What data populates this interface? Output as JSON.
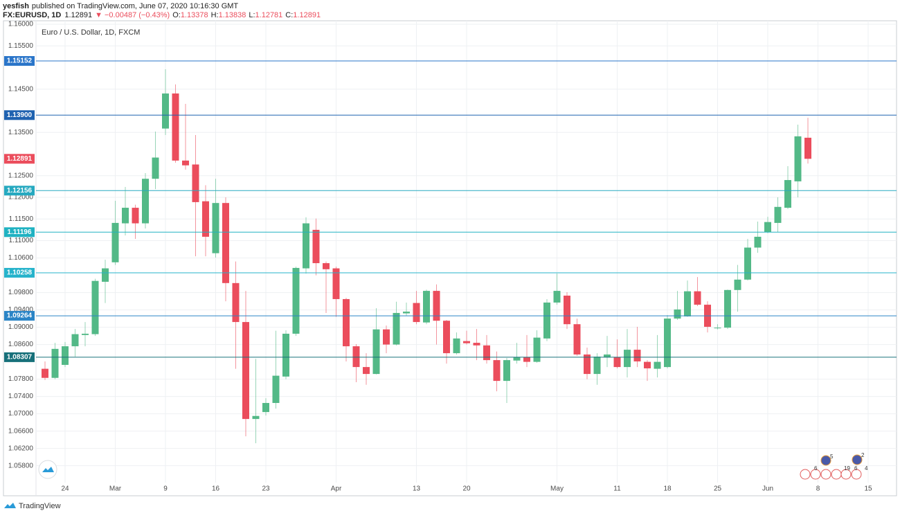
{
  "header": {
    "author": "yesfish",
    "published": "published on TradingView.com, June 07, 2020 10:16:30 GMT",
    "symbol": "FX:EURUSD, 1D",
    "last": "1.12891",
    "change": "−0.00487 (−0.43%)",
    "ohlc": [
      [
        "O:",
        "1.13378"
      ],
      [
        "H:",
        "1.13838"
      ],
      [
        "L:",
        "1.12781"
      ],
      [
        "C:",
        "1.12891"
      ]
    ]
  },
  "footer": {
    "brand": "TradingView"
  },
  "events": [
    "5",
    "2",
    "6",
    "19",
    "6",
    "4"
  ],
  "chart_data": {
    "type": "candlestick",
    "title": "Euro / U.S. Dollar, 1D, FXCM",
    "up_color": "#53b987",
    "down_color": "#eb4d5c",
    "grid": true,
    "categories": [
      null,
      null,
      "24",
      null,
      null,
      null,
      null,
      "Mar",
      null,
      null,
      null,
      null,
      "9",
      null,
      null,
      null,
      null,
      "16",
      null,
      null,
      null,
      null,
      "23",
      null,
      null,
      null,
      null,
      null,
      null,
      "Apr",
      null,
      null,
      null,
      null,
      null,
      null,
      null,
      "13",
      null,
      null,
      null,
      null,
      "20",
      null,
      null,
      null,
      null,
      null,
      null,
      null,
      null,
      "May",
      null,
      null,
      null,
      null,
      null,
      "11",
      null,
      null,
      null,
      null,
      "18",
      null,
      null,
      null,
      null,
      "25",
      null,
      null,
      null,
      null,
      "Jun",
      null,
      null,
      null,
      null,
      "8",
      null,
      null,
      null,
      null,
      "15",
      null,
      null
    ],
    "open": [
      1.0804,
      1.0783,
      1.0813,
      1.0856,
      1.0882,
      1.0884,
      1.1005,
      1.105,
      1.114,
      1.1176,
      1.114,
      1.1243,
      1.1359,
      1.144,
      1.1285,
      1.1276,
      1.1191,
      1.1071,
      1.1187,
      1.1002,
      1.0912,
      1.0688,
      1.0704,
      1.0725,
      1.0786,
      1.0885,
      1.1036,
      1.1125,
      1.1048,
      1.1036,
      1.0965,
      1.0856,
      1.0808,
      1.0792,
      1.0895,
      1.086,
      1.0932,
      1.0956,
      1.0911,
      1.0984,
      1.0915,
      1.084,
      1.0868,
      1.0864,
      1.0858,
      1.0824,
      1.0776,
      1.0823,
      1.0831,
      1.082,
      1.0874,
      1.0957,
      1.0973,
      1.0907,
      1.0837,
      1.0792,
      1.0831,
      1.0831,
      1.0808,
      1.0848,
      1.082,
      1.0804,
      1.0808,
      1.092,
      1.0925,
      1.0983,
      1.0952,
      1.0898,
      1.0899,
      1.0986,
      1.101,
      1.1084,
      1.112,
      1.1141,
      1.1176,
      1.1237,
      1.13378,
      null,
      null,
      null,
      null,
      null,
      null,
      null,
      null
    ],
    "high": [
      1.0821,
      1.0864,
      1.0866,
      1.0896,
      1.0912,
      1.1012,
      1.1056,
      1.1192,
      1.1224,
      1.1183,
      1.1256,
      1.1352,
      1.1496,
      1.1461,
      1.1416,
      1.1344,
      1.1228,
      1.1243,
      1.12,
      1.1052,
      1.0984,
      1.0827,
      1.0736,
      1.0892,
      1.0893,
      1.104,
      1.1154,
      1.1151,
      1.1052,
      1.104,
      1.0968,
      1.0861,
      1.084,
      1.0944,
      1.0904,
      1.0959,
      1.0957,
      1.0984,
      1.0987,
      1.0999,
      1.0917,
      1.0888,
      1.0892,
      1.0896,
      1.0882,
      1.0844,
      1.0829,
      1.0864,
      1.0882,
      1.0893,
      1.0965,
      1.1024,
      1.0981,
      1.092,
      1.0853,
      1.084,
      1.088,
      1.0872,
      1.0896,
      1.0901,
      1.0824,
      1.0882,
      1.0928,
      1.0984,
      1.1008,
      1.1016,
      1.096,
      1.0907,
      1.0987,
      1.1044,
      1.1104,
      1.1144,
      1.1155,
      1.12,
      1.1272,
      1.1368,
      1.13838,
      null,
      null,
      null,
      null,
      null,
      null,
      null,
      null
    ],
    "low": [
      1.0778,
      1.078,
      1.0808,
      1.0832,
      1.0856,
      1.088,
      1.0956,
      1.1044,
      1.1112,
      1.1104,
      1.1128,
      1.1219,
      1.1344,
      1.128,
      1.1264,
      1.1064,
      1.1064,
      1.1061,
      1.096,
      1.0804,
      1.0648,
      1.0632,
      1.0696,
      1.0712,
      1.078,
      1.088,
      1.1024,
      1.102,
      1.0933,
      1.0924,
      1.0821,
      1.0773,
      1.0767,
      1.0791,
      1.084,
      1.0858,
      1.0927,
      1.0907,
      1.0907,
      1.086,
      1.0816,
      1.0837,
      1.086,
      1.0824,
      1.0816,
      1.0752,
      1.0725,
      1.0816,
      1.0808,
      1.0818,
      1.0868,
      1.0952,
      1.0896,
      1.0834,
      1.078,
      1.0767,
      1.0808,
      1.0805,
      1.0784,
      1.0808,
      1.0776,
      1.0784,
      1.0805,
      1.0917,
      1.0924,
      1.0949,
      1.0888,
      1.0895,
      1.0896,
      1.0936,
      1.1008,
      1.1072,
      1.1117,
      1.112,
      1.1173,
      1.12,
      1.12781,
      null,
      null,
      null,
      null,
      null,
      null,
      null,
      null
    ],
    "close": [
      1.0783,
      1.085,
      1.0856,
      1.0884,
      1.0885,
      1.1007,
      1.1036,
      1.1141,
      1.1176,
      1.114,
      1.1243,
      1.1292,
      1.144,
      1.1285,
      1.1274,
      1.1189,
      1.1109,
      1.1187,
      1.1002,
      1.0912,
      1.0688,
      1.0695,
      1.0725,
      1.0788,
      1.0885,
      1.1037,
      1.114,
      1.1048,
      1.1034,
      1.0965,
      1.0856,
      1.0808,
      1.0792,
      1.0895,
      1.086,
      1.0933,
      1.0936,
      1.0912,
      1.0984,
      1.0915,
      1.084,
      1.0874,
      1.0863,
      1.0858,
      1.0824,
      1.0776,
      1.0824,
      1.0831,
      1.082,
      1.0876,
      1.0957,
      1.0984,
      1.0907,
      1.0837,
      1.0792,
      1.0832,
      1.0837,
      1.0808,
      1.0848,
      1.0821,
      1.0805,
      1.082,
      1.092,
      1.0941,
      1.0983,
      1.0952,
      1.0901,
      1.0899,
      1.0986,
      1.101,
      1.1084,
      1.1109,
      1.1143,
      1.1178,
      1.124,
      1.1341,
      1.12891,
      null,
      null,
      null,
      null,
      null,
      null,
      null,
      null
    ],
    "ylim": [
      1.0541,
      1.1608
    ],
    "yticks": [
      {
        "value": 1.16,
        "label": "1.16000"
      },
      {
        "value": 1.155,
        "label": "1.15500"
      },
      {
        "value": 1.145,
        "label": "1.14500"
      },
      {
        "value": 1.135,
        "label": "1.13500"
      },
      {
        "value": 1.125,
        "label": "1.12500"
      },
      {
        "value": 1.12,
        "label": "1.12000"
      },
      {
        "value": 1.115,
        "label": "1.11500"
      },
      {
        "value": 1.11,
        "label": "1.11000"
      },
      {
        "value": 1.106,
        "label": "1.10600"
      },
      {
        "value": 1.098,
        "label": "1.09800"
      },
      {
        "value": 1.094,
        "label": "1.09400"
      },
      {
        "value": 1.09,
        "label": "1.09000"
      },
      {
        "value": 1.086,
        "label": "1.08600"
      },
      {
        "value": 1.078,
        "label": "1.07800"
      },
      {
        "value": 1.074,
        "label": "1.07400"
      },
      {
        "value": 1.07,
        "label": "1.07000"
      },
      {
        "value": 1.066,
        "label": "1.06600"
      },
      {
        "value": 1.062,
        "label": "1.06200"
      },
      {
        "value": 1.058,
        "label": "1.05800"
      }
    ],
    "levels": [
      1.15152,
      {
        "value": 1.139,
        "label": "1.13900"
      },
      1.12156,
      1.11196,
      1.10258,
      1.09264,
      1.08307
    ],
    "level_colors": [
      "#2a75c9",
      "#1f62b0",
      "#26a9c0",
      "#20b2c2",
      "#26b3cb",
      "#2a84c6",
      "#17707a"
    ],
    "last_price": 1.12891
  }
}
